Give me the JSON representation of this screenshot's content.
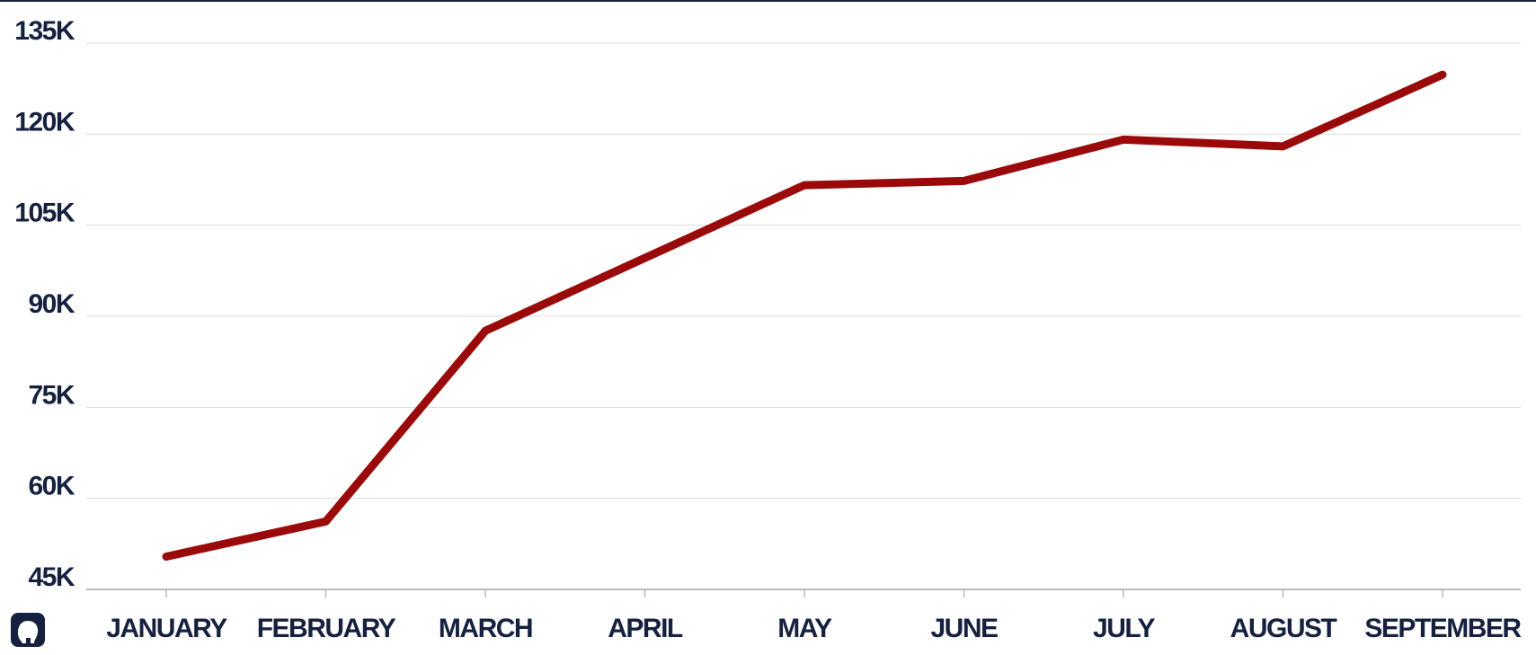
{
  "chart_data": {
    "type": "line",
    "categories": [
      "JANUARY",
      "FEBRUARY",
      "MARCH",
      "APRIL",
      "MAY",
      "JUNE",
      "JULY",
      "AUGUST",
      "SEPTEMBER"
    ],
    "values": [
      50400,
      56200,
      87600,
      99600,
      111600,
      112300,
      119100,
      118000,
      129800
    ],
    "color": "#9b0a0a",
    "ylim": [
      45000,
      135000
    ],
    "yticks": [
      {
        "value": 45000,
        "label": "45K"
      },
      {
        "value": 60000,
        "label": "60K"
      },
      {
        "value": 75000,
        "label": "75K"
      },
      {
        "value": 90000,
        "label": "90K"
      },
      {
        "value": 105000,
        "label": "105K"
      },
      {
        "value": 120000,
        "label": "120K"
      },
      {
        "value": 135000,
        "label": "135K"
      }
    ],
    "grid": true
  }
}
